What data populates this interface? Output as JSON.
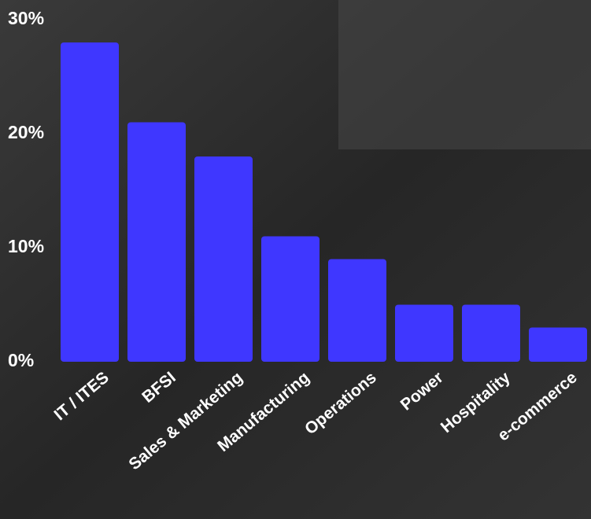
{
  "chart_data": {
    "type": "bar",
    "categories": [
      "IT / ITES",
      "BFSI",
      "Sales & Marketing",
      "Manufacturing",
      "Operations",
      "Power",
      "Hospitality",
      "e-commerce"
    ],
    "values": [
      28,
      21,
      18,
      11,
      9,
      5,
      5,
      3
    ],
    "color": "#3f37ff",
    "ylim": [
      0,
      30
    ],
    "yticks": [
      {
        "value": 0,
        "label": "0%"
      },
      {
        "value": 10,
        "label": "10%"
      },
      {
        "value": 20,
        "label": "20%"
      },
      {
        "value": 30,
        "label": "30%"
      }
    ],
    "grid": false
  }
}
